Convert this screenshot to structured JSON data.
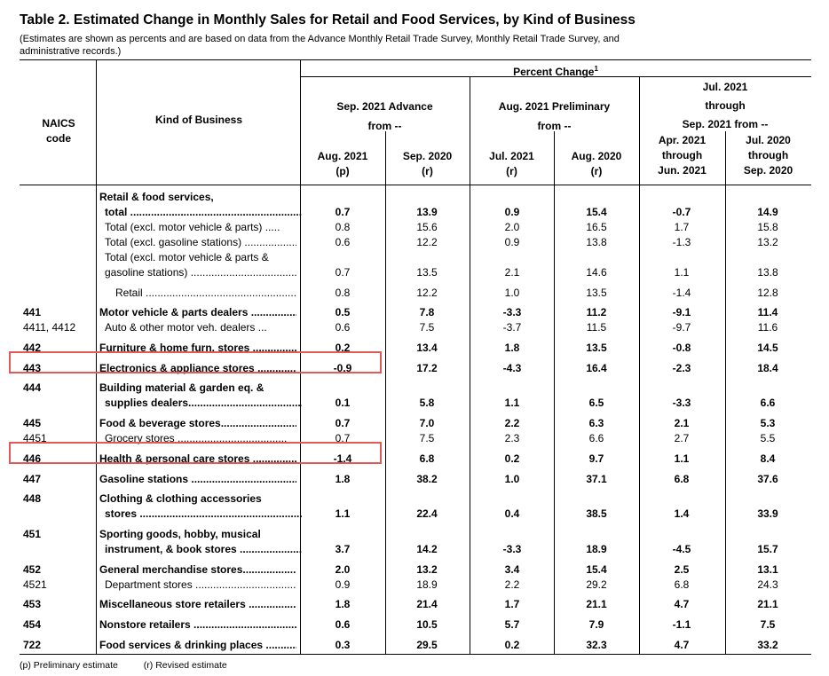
{
  "title": "Table 2.  Estimated Change in Monthly Sales for Retail and Food Services, by Kind of Business",
  "subtitle": "(Estimates are shown as percents and are based on data from the Advance Monthly Retail Trade Survey,  Monthly Retail Trade Survey, and administrative records.)",
  "header": {
    "naics_line1": "NAICS",
    "naics_line2": "code",
    "kind": "Kind of Business",
    "percent_change": "Percent Change",
    "percent_sup": "1",
    "group1_line1": "Sep. 2021 Advance",
    "group1_line2": "from --",
    "group2_line1": "Aug. 2021 Preliminary",
    "group2_line2": "from --",
    "group3_line1": "Jul. 2021",
    "group3_line2": "through",
    "group3_line3": "Sep. 2021 from --",
    "col1_a": "Aug. 2021",
    "col1_b": "(p)",
    "col2_a": "Sep. 2020",
    "col2_b": "(r)",
    "col3_a": "Jul. 2021",
    "col3_b": "(r)",
    "col4_a": "Aug. 2020",
    "col4_b": "(r)",
    "col5_a": "Apr. 2021",
    "col5_b": "through",
    "col5_c": "Jun. 2021",
    "col6_a": "Jul. 2020",
    "col6_b": "through",
    "col6_c": "Sep. 2020"
  },
  "rows": [
    {
      "code": "",
      "label_pre": "Retail & food services,",
      "label": "total ..............................................................",
      "v": [
        "0.7",
        "13.9",
        "0.9",
        "15.4",
        "-0.7",
        "14.9"
      ],
      "bold": true
    },
    {
      "code": "",
      "label": "Total (excl. motor vehicle & parts) .....",
      "v": [
        "0.8",
        "15.6",
        "2.0",
        "16.5",
        "1.7",
        "15.8"
      ]
    },
    {
      "code": "",
      "label": "Total (excl. gasoline stations) ..................",
      "v": [
        "0.6",
        "12.2",
        "0.9",
        "13.8",
        "-1.3",
        "13.2"
      ]
    },
    {
      "code": "",
      "label_pre": "Total (excl. motor vehicle & parts &",
      "label": "gasoline stations) ......................................",
      "v": [
        "0.7",
        "13.5",
        "2.1",
        "14.6",
        "1.1",
        "13.8"
      ]
    },
    {
      "code": "",
      "label": "Retail .........................................................................",
      "v": [
        "0.8",
        "12.2",
        "1.0",
        "13.5",
        "-1.4",
        "12.8"
      ]
    },
    {
      "code": "441",
      "label": "Motor vehicle & parts dealers ..................",
      "v": [
        "0.5",
        "7.8",
        "-3.3",
        "11.2",
        "-9.1",
        "11.4"
      ],
      "bold": true
    },
    {
      "code": "4411, 4412",
      "label": "Auto & other motor veh. dealers ...",
      "v": [
        "0.6",
        "7.5",
        "-3.7",
        "11.5",
        "-9.7",
        "11.6"
      ]
    },
    {
      "code": "442",
      "label": "Furniture & home furn. stores ..................",
      "v": [
        "0.2",
        "13.4",
        "1.8",
        "13.5",
        "-0.8",
        "14.5"
      ],
      "bold": true
    },
    {
      "code": "443",
      "label": "Electronics & appliance stores ....................",
      "v": [
        "-0.9",
        "17.2",
        "-4.3",
        "16.4",
        "-2.3",
        "18.4"
      ],
      "bold": true
    },
    {
      "code": "444",
      "label_pre": "Building material & garden eq. &",
      "label": "supplies dealers..................................................",
      "v": [
        "0.1",
        "5.8",
        "1.1",
        "6.5",
        "-3.3",
        "6.6"
      ],
      "bold": true
    },
    {
      "code": "445",
      "label": "Food & beverage stores...................................",
      "v": [
        "0.7",
        "7.0",
        "2.2",
        "6.3",
        "2.1",
        "5.3"
      ],
      "bold": true
    },
    {
      "code": "4451",
      "label": "Grocery stores .....................................",
      "v": [
        "0.7",
        "7.5",
        "2.3",
        "6.6",
        "2.7",
        "5.5"
      ]
    },
    {
      "code": "446",
      "label": "Health & personal care stores ..................",
      "v": [
        "-1.4",
        "6.8",
        "0.2",
        "9.7",
        "1.1",
        "8.4"
      ],
      "bold": true
    },
    {
      "code": "447",
      "label": "Gasoline stations ............................................",
      "v": [
        "1.8",
        "38.2",
        "1.0",
        "37.1",
        "6.8",
        "37.6"
      ],
      "bold": true
    },
    {
      "code": "448",
      "label_pre": "Clothing & clothing accessories",
      "label": "stores ............................................................",
      "v": [
        "1.1",
        "22.4",
        "0.4",
        "38.5",
        "1.4",
        "33.9"
      ],
      "bold": true
    },
    {
      "code": "451",
      "label_pre": "Sporting goods, hobby, musical",
      "label": "instrument, & book stores .......................",
      "v": [
        "3.7",
        "14.2",
        "-3.3",
        "18.9",
        "-4.5",
        "15.7"
      ],
      "bold": true
    },
    {
      "code": "452",
      "label": "General merchandise stores.........................",
      "v": [
        "2.0",
        "13.2",
        "3.4",
        "15.4",
        "2.5",
        "13.1"
      ],
      "bold": true
    },
    {
      "code": "4521",
      "label": "Department stores ...................................",
      "v": [
        "0.9",
        "18.9",
        "2.2",
        "29.2",
        "6.8",
        "24.3"
      ]
    },
    {
      "code": "453",
      "label": "Miscellaneous store retailers ......................",
      "v": [
        "1.8",
        "21.4",
        "1.7",
        "21.1",
        "4.7",
        "21.1"
      ],
      "bold": true
    },
    {
      "code": "454",
      "label": "Nonstore retailers ..............................................",
      "v": [
        "0.6",
        "10.5",
        "5.7",
        "7.9",
        "-1.1",
        "7.5"
      ],
      "bold": true
    },
    {
      "code": "722",
      "label": "Food services & drinking places ...............",
      "v": [
        "0.3",
        "29.5",
        "0.2",
        "32.3",
        "4.7",
        "33.2"
      ],
      "bold": true
    }
  ],
  "footnotes": {
    "p": "(p)  Preliminary estimate",
    "r": "(r)   Revised estimate"
  },
  "colors": {
    "highlight": "#e05a5a",
    "rule": "#000000"
  }
}
